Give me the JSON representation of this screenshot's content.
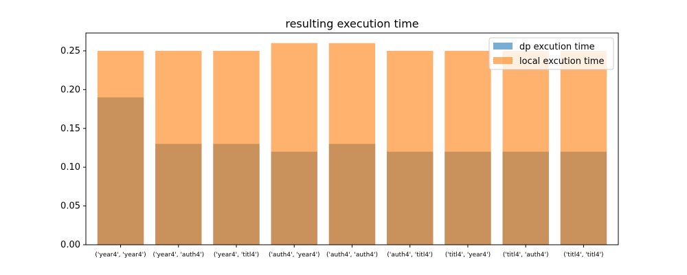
{
  "chart_data": {
    "type": "bar",
    "title": "resulting execution time",
    "xlabel": "",
    "ylabel": "",
    "categories": [
      "('year4', 'year4')",
      "('year4', 'auth4')",
      "('year4', 'titl4')",
      "('auth4', 'year4')",
      "('auth4', 'auth4')",
      "('auth4', 'titl4')",
      "('titl4', 'year4')",
      "('titl4', 'auth4')",
      "('titl4', 'titl4')"
    ],
    "series": [
      {
        "name": "dp excution time",
        "color": "#1f77b4",
        "opacity": 0.6,
        "values": [
          0.19,
          0.13,
          0.13,
          0.12,
          0.13,
          0.12,
          0.12,
          0.12,
          0.12
        ]
      },
      {
        "name": "local excution time",
        "color": "#ff7f0e",
        "opacity": 0.6,
        "values": [
          0.25,
          0.25,
          0.25,
          0.26,
          0.26,
          0.25,
          0.25,
          0.25,
          0.25
        ]
      }
    ],
    "ylim": [
      0,
      0.273
    ],
    "yticks": [
      "0.00",
      "0.05",
      "0.10",
      "0.15",
      "0.20",
      "0.25"
    ],
    "legend": "top-right",
    "grid": false
  }
}
